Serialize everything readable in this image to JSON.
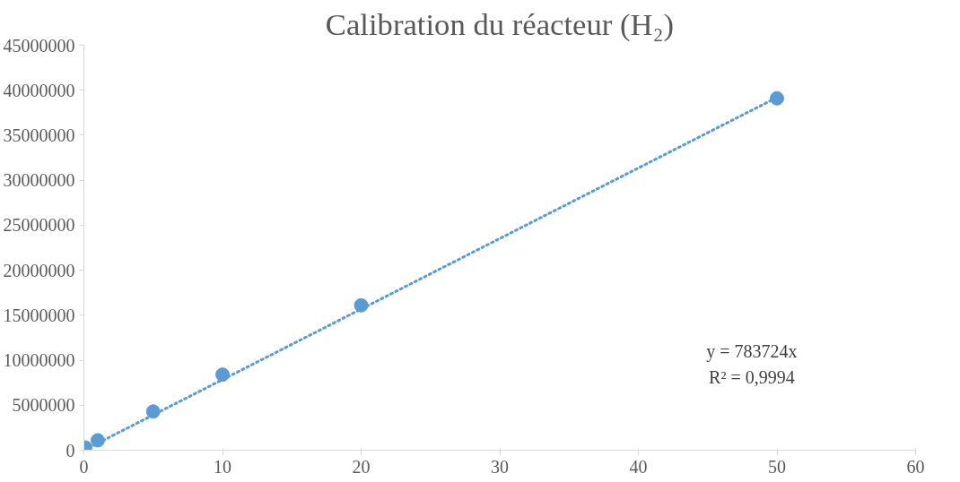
{
  "chart_data": {
    "type": "scatter",
    "title": "Calibration du réacteur (H₂)",
    "series": [
      {
        "color": "#5b9bd5",
        "marker": "circle",
        "x": [
          0.1,
          1,
          5,
          10,
          20,
          50
        ],
        "values": [
          300000,
          1100000,
          4300000,
          8400000,
          16100000,
          39100000
        ]
      },
      {
        "type": "line",
        "color": "#5b9bd5",
        "line_style": "dotted",
        "x": [
          0,
          50
        ],
        "values": [
          0,
          39200000
        ]
      }
    ],
    "xlim": [
      0,
      60
    ],
    "xticks": [
      0,
      10,
      20,
      30,
      40,
      50,
      60
    ],
    "ylim": [
      0,
      45000000
    ],
    "yticks": [
      0,
      5000000,
      10000000,
      15000000,
      20000000,
      25000000,
      30000000,
      35000000,
      40000000,
      45000000
    ],
    "annotations": [
      "y = 783724x",
      "R² = 0,9994"
    ],
    "grid": false
  }
}
